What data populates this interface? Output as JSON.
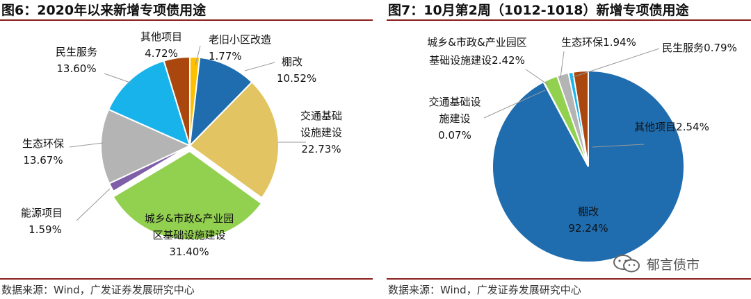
{
  "charts": [
    {
      "figure_title": "图6：2020年以来新增专项债用途",
      "source": "数据来源：Wind，广发证券发展研究中心"
    },
    {
      "figure_title": "图7：10月第2周（1012-1018）新增专项债用途",
      "source": "数据来源：Wind，广发证券发展研究中心"
    }
  ],
  "watermark": {
    "text": "郁言债市",
    "icon": "wechat-icon"
  },
  "chart_data": [
    {
      "type": "pie",
      "title": "图6：2020年以来新增专项债用途",
      "slices": [
        {
          "name": "老旧小区改造",
          "value": 1.77,
          "label": "1.77%",
          "color": "#FFC000"
        },
        {
          "name": "棚改",
          "value": 10.52,
          "label": "10.52%",
          "color": "#1F6DAF"
        },
        {
          "name": "交通基础设施建设",
          "value": 22.73,
          "label": "22.73%",
          "color": "#E3C462"
        },
        {
          "name": "城乡&市政&产业园区基础设施建设",
          "value": 31.4,
          "label": "31.40%",
          "color": "#92D050"
        },
        {
          "name": "能源项目",
          "value": 1.59,
          "label": "1.59%",
          "color": "#7F5FA8"
        },
        {
          "name": "生态环保",
          "value": 13.67,
          "label": "13.67%",
          "color": "#B4B4B4"
        },
        {
          "name": "民生服务",
          "value": 13.6,
          "label": "13.60%",
          "color": "#18B3EB"
        },
        {
          "name": "其他项目",
          "value": 4.72,
          "label": "4.72%",
          "color": "#A9470F"
        }
      ]
    },
    {
      "type": "pie",
      "title": "图7：10月第2周（1012-1018）新增专项债用途",
      "slices": [
        {
          "name": "棚改",
          "value": 92.24,
          "label": "92.24%",
          "color": "#1F6DAF"
        },
        {
          "name": "交通基础设施建设",
          "value": 0.07,
          "label": "0.07%",
          "color": "#E3C462"
        },
        {
          "name": "城乡&市政&产业园区基础设施建设",
          "value": 2.42,
          "label": "2.42%",
          "color": "#92D050"
        },
        {
          "name": "生态环保",
          "value": 1.94,
          "label": "1.94%",
          "color": "#B4B4B4"
        },
        {
          "name": "民生服务",
          "value": 0.79,
          "label": "0.79%",
          "color": "#18B3EB"
        },
        {
          "name": "其他项目",
          "value": 2.54,
          "label": "2.54%",
          "color": "#A9470F"
        }
      ]
    }
  ]
}
